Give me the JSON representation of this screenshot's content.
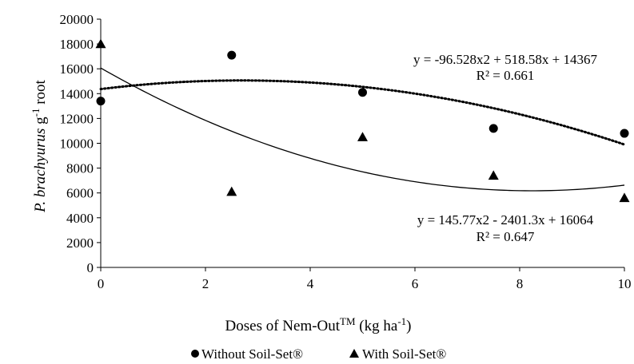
{
  "chart_data": {
    "type": "scatter",
    "title": "",
    "xlabel": "Doses of Nem-OutTM (kg ha-1)",
    "xlabel_parts": {
      "main": "Doses of Nem-Out",
      "sup": "TM",
      "unit_open": " (kg ha",
      "unit_sup": "-1",
      "unit_close": ")"
    },
    "ylabel": "P. brachyurus g-1 root",
    "ylabel_parts": {
      "italic": "P. brachyurus",
      "mid": " g",
      "sup": "-1",
      "tail": " root"
    },
    "xlim": [
      0,
      10
    ],
    "ylim": [
      0,
      20000
    ],
    "xticks": [
      0,
      2,
      4,
      6,
      8,
      10
    ],
    "yticks": [
      0,
      2000,
      4000,
      6000,
      8000,
      10000,
      12000,
      14000,
      16000,
      18000,
      20000
    ],
    "grid": false,
    "legend_position": "bottom",
    "series": [
      {
        "name": "Without Soil-Set®",
        "marker": "circle",
        "x": [
          0,
          2.5,
          5,
          7.5,
          10
        ],
        "y": [
          13400,
          17100,
          14100,
          11200,
          10800
        ],
        "trend": {
          "style": "dotted",
          "coefficients": [
            -96.528,
            518.58,
            14367
          ],
          "equation": "y = -96.528x2 + 518.58x + 14367",
          "r2": "R² = 0.661"
        }
      },
      {
        "name": "With Soil-Set®",
        "marker": "triangle",
        "x": [
          0,
          2.5,
          5,
          7.5,
          10
        ],
        "y": [
          18000,
          6100,
          10500,
          7400,
          5600
        ],
        "trend": {
          "style": "solid",
          "coefficients": [
            145.77,
            -2401.3,
            16064
          ],
          "equation": "y = 145.77x2 - 2401.3x + 16064",
          "r2": "R² = 0.647"
        }
      }
    ]
  }
}
